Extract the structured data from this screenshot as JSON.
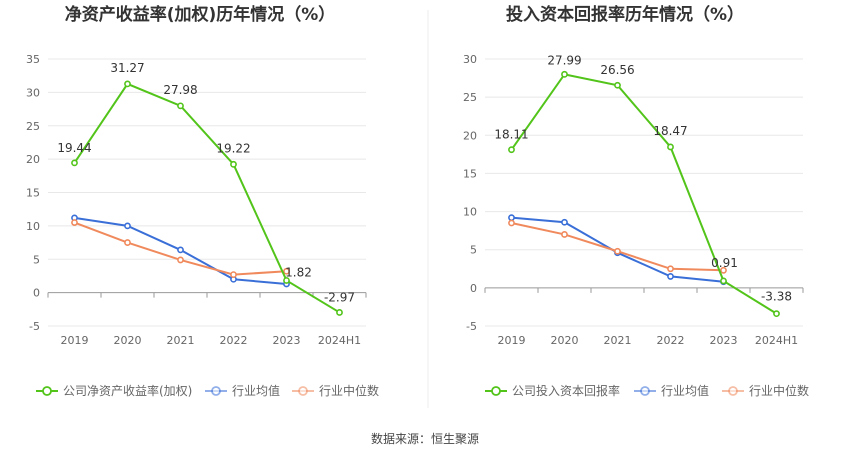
{
  "source_label": "数据来源：恒生聚源",
  "chart_data": [
    {
      "type": "line",
      "title": "净资产收益率(加权)历年情况（%）",
      "categories": [
        "2019",
        "2020",
        "2021",
        "2022",
        "2023",
        "2024H1"
      ],
      "ylim": [
        -5,
        35
      ],
      "yticks": [
        -5,
        0,
        5,
        10,
        15,
        20,
        25,
        30,
        35
      ],
      "grid": true,
      "legend_position": "bottom",
      "series": [
        {
          "name": "公司净资产收益率(加权)",
          "color": "#52c41a",
          "values": [
            19.44,
            31.27,
            27.98,
            19.22,
            1.82,
            -2.97
          ],
          "labels": [
            "19.44",
            "31.27",
            "27.98",
            "19.22",
            "1.82",
            "-2.97"
          ]
        },
        {
          "name": "行业均值",
          "color": "#3a6fd8",
          "values": [
            11.2,
            10.0,
            6.4,
            2.0,
            1.3,
            null
          ]
        },
        {
          "name": "行业中位数",
          "color": "#f08a5d",
          "values": [
            10.5,
            7.5,
            4.9,
            2.7,
            3.2,
            null
          ]
        }
      ]
    },
    {
      "type": "line",
      "title": "投入资本回报率历年情况（%）",
      "categories": [
        "2019",
        "2020",
        "2021",
        "2022",
        "2023",
        "2024H1"
      ],
      "ylim": [
        -5,
        30
      ],
      "yticks": [
        -5,
        0,
        5,
        10,
        15,
        20,
        25,
        30
      ],
      "grid": true,
      "legend_position": "bottom",
      "series": [
        {
          "name": "公司投入资本回报率",
          "color": "#52c41a",
          "values": [
            18.11,
            27.99,
            26.56,
            18.47,
            0.91,
            -3.38
          ],
          "labels": [
            "18.11",
            "27.99",
            "26.56",
            "18.47",
            "0.91",
            "-3.38"
          ]
        },
        {
          "name": "行业均值",
          "color": "#3a6fd8",
          "values": [
            9.2,
            8.6,
            4.6,
            1.5,
            0.8,
            null
          ]
        },
        {
          "name": "行业中位数",
          "color": "#f08a5d",
          "values": [
            8.5,
            7.0,
            4.8,
            2.5,
            2.3,
            null
          ]
        }
      ]
    }
  ]
}
